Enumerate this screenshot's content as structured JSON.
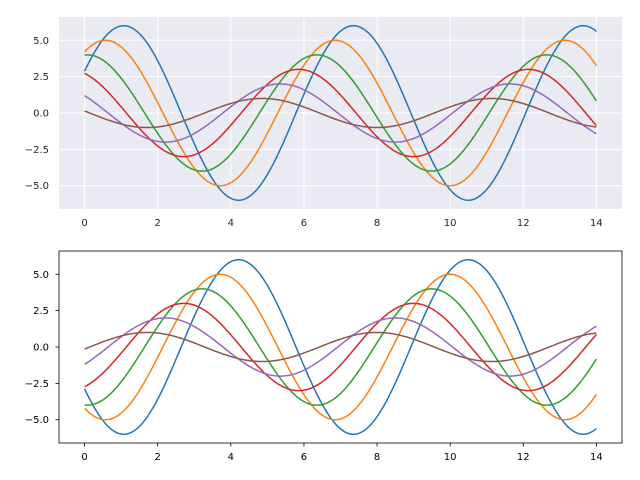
{
  "chart_data": [
    {
      "type": "line",
      "style": "darkgrid",
      "background": "#eaeaf2",
      "grid": true,
      "frame": false,
      "x_range": [
        0,
        14
      ],
      "xlim": [
        -0.7,
        14.7
      ],
      "ylim": [
        -6.6,
        6.6
      ],
      "xticks": [
        0,
        2,
        4,
        6,
        8,
        10,
        12,
        14
      ],
      "xtick_labels": [
        "0",
        "2",
        "4",
        "6",
        "8",
        "10",
        "12",
        "14"
      ],
      "yticks": [
        5.0,
        2.5,
        0.0,
        -2.5,
        -5.0
      ],
      "ytick_labels": [
        "5.0",
        "2.5",
        "0.0",
        "−2.5",
        "−5.0"
      ],
      "series": [
        {
          "color": "#1f77b4",
          "function": "sin(x + 0.5) * 6",
          "values_at_x0_x14": [
            2.88,
            5.64
          ]
        },
        {
          "color": "#ff7f0e",
          "function": "sin(x + 1.0) * 5",
          "values_at_x0_x14": [
            4.21,
            3.25
          ]
        },
        {
          "color": "#2ca02c",
          "function": "sin(x + 1.5) * 4",
          "values_at_x0_x14": [
            3.99,
            0.85
          ]
        },
        {
          "color": "#d62728",
          "function": "sin(x + 2.0) * 3",
          "values_at_x0_x14": [
            2.73,
            -0.91
          ]
        },
        {
          "color": "#9467bd",
          "function": "sin(x + 2.5) * 2",
          "values_at_x0_x14": [
            1.2,
            -1.45
          ]
        },
        {
          "color": "#8c564b",
          "function": "sin(x + 3.0) * 1",
          "values_at_x0_x14": [
            0.14,
            -0.96
          ]
        }
      ]
    },
    {
      "type": "line",
      "style": "classic",
      "background": "#ffffff",
      "grid": false,
      "frame": true,
      "x_range": [
        0,
        14
      ],
      "xlim": [
        -0.7,
        14.7
      ],
      "ylim": [
        -6.6,
        6.6
      ],
      "xticks": [
        0,
        2,
        4,
        6,
        8,
        10,
        12,
        14
      ],
      "xtick_labels": [
        "0",
        "2",
        "4",
        "6",
        "8",
        "10",
        "12",
        "14"
      ],
      "yticks": [
        5.0,
        2.5,
        0.0,
        -2.5,
        -5.0
      ],
      "ytick_labels": [
        "5.0",
        "2.5",
        "0.0",
        "−2.5",
        "−5.0"
      ],
      "series": [
        {
          "color": "#1f77b4",
          "function": "-sin(x + 0.5) * 6",
          "values_at_x0_x14": [
            -2.88,
            -5.64
          ]
        },
        {
          "color": "#ff7f0e",
          "function": "-sin(x + 1.0) * 5",
          "values_at_x0_x14": [
            -4.21,
            -3.25
          ]
        },
        {
          "color": "#2ca02c",
          "function": "-sin(x + 1.5) * 4",
          "values_at_x0_x14": [
            -3.99,
            -0.85
          ]
        },
        {
          "color": "#d62728",
          "function": "-sin(x + 2.0) * 3",
          "values_at_x0_x14": [
            -2.73,
            0.91
          ]
        },
        {
          "color": "#9467bd",
          "function": "-sin(x + 2.5) * 2",
          "values_at_x0_x14": [
            -1.2,
            1.45
          ]
        },
        {
          "color": "#8c564b",
          "function": "-sin(x + 3.0) * 1",
          "values_at_x0_x14": [
            -0.14,
            0.96
          ]
        }
      ]
    }
  ]
}
